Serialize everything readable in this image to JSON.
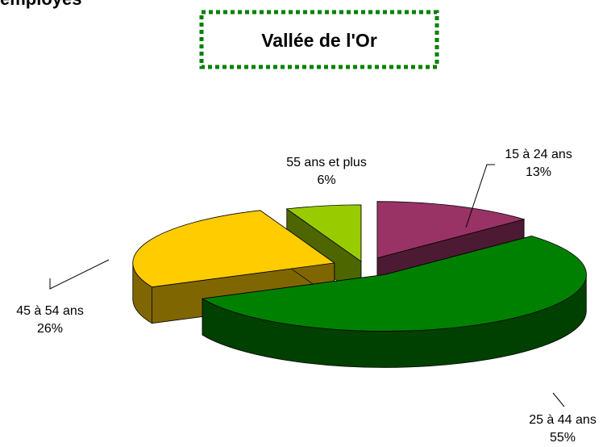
{
  "chart_data": {
    "type": "pie3d",
    "heading": "employés",
    "title": "Vallée de l'Or",
    "categories": [
      "15 à 24 ans",
      "25 à 44 ans",
      "45 à 54 ans",
      "55 ans et plus"
    ],
    "values": [
      13,
      55,
      26,
      6
    ],
    "value_labels": [
      "13%",
      "55%",
      "26%",
      "6%"
    ],
    "colors": [
      "#993366",
      "#008000",
      "#ffcc00",
      "#99cc00"
    ]
  }
}
